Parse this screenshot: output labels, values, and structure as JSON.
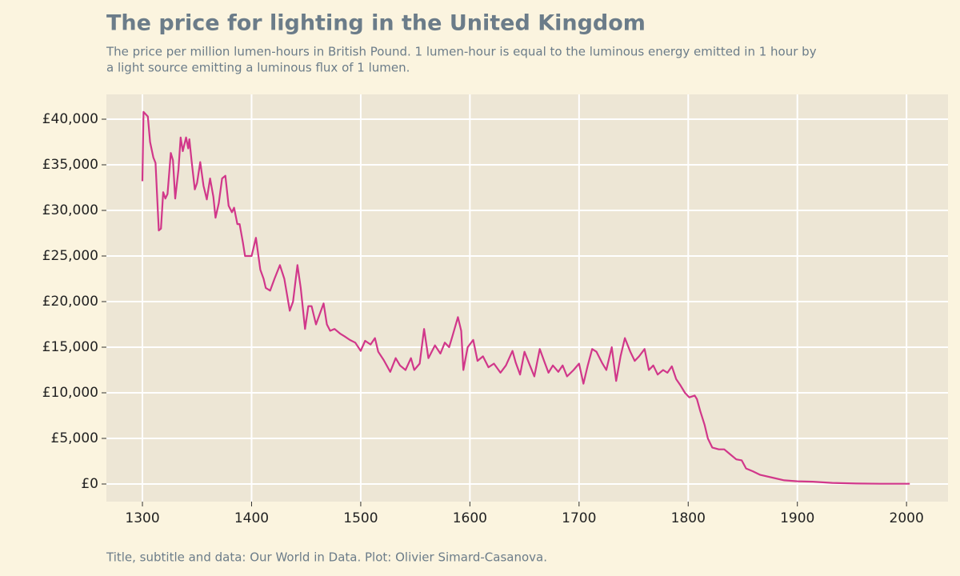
{
  "chart_data": {
    "type": "line",
    "title": "The price for lighting in the United Kingdom",
    "subtitle": [
      "The price per million lumen-hours in British Pound. 1 lumen-hour is equal to the luminous energy emitted in 1 hour by",
      "a light source emitting a luminous flux of 1 lumen."
    ],
    "caption": "Title, subtitle and data: Our World in Data. Plot: Olivier Simard-Casanova.",
    "series": [
      {
        "name": "United Kingdom",
        "color": "#d1378a",
        "x": [
          1300,
          1301,
          1305,
          1307,
          1310,
          1312,
          1315,
          1317,
          1319,
          1321,
          1323,
          1326,
          1328,
          1330,
          1333,
          1335,
          1337,
          1340,
          1342,
          1343,
          1345,
          1348,
          1350,
          1353,
          1356,
          1359,
          1362,
          1365,
          1367,
          1370,
          1373,
          1376,
          1379,
          1382,
          1384,
          1387,
          1389,
          1392,
          1394,
          1398,
          1400,
          1404,
          1408,
          1411,
          1413,
          1417,
          1421,
          1426,
          1430,
          1435,
          1438,
          1442,
          1445,
          1449,
          1452,
          1455,
          1459,
          1462,
          1466,
          1469,
          1472,
          1476,
          1481,
          1485,
          1490,
          1495,
          1500,
          1504,
          1509,
          1513,
          1516,
          1521,
          1527,
          1532,
          1536,
          1541,
          1546,
          1549,
          1554,
          1558,
          1562,
          1568,
          1573,
          1577,
          1581,
          1584,
          1589,
          1592,
          1594,
          1598,
          1603,
          1607,
          1612,
          1617,
          1622,
          1628,
          1633,
          1639,
          1642,
          1646,
          1650,
          1655,
          1659,
          1664,
          1668,
          1672,
          1676,
          1681,
          1685,
          1689,
          1695,
          1700,
          1704,
          1708,
          1712,
          1716,
          1721,
          1725,
          1730,
          1734,
          1738,
          1742,
          1747,
          1751,
          1755,
          1760,
          1764,
          1768,
          1772,
          1777,
          1781,
          1785,
          1789,
          1793,
          1797,
          1801,
          1806,
          1808,
          1811,
          1815,
          1818,
          1822,
          1828,
          1833,
          1838,
          1844,
          1849,
          1853,
          1859,
          1866,
          1877,
          1888,
          1900,
          1914,
          1932,
          1954,
          1976,
          2003
        ],
        "values": [
          33200,
          40800,
          40300,
          37500,
          35800,
          35200,
          27800,
          28000,
          32000,
          31300,
          31800,
          36300,
          35500,
          31300,
          34500,
          38000,
          36500,
          38000,
          36800,
          37800,
          35500,
          32300,
          33000,
          35300,
          32700,
          31200,
          33500,
          31500,
          29200,
          30800,
          33500,
          33800,
          30500,
          29800,
          30300,
          28500,
          28500,
          26500,
          25000,
          25000,
          25000,
          27000,
          23500,
          22500,
          21500,
          21200,
          22500,
          24000,
          22500,
          19000,
          20000,
          24000,
          21500,
          17000,
          19500,
          19500,
          17500,
          18500,
          19800,
          17500,
          16800,
          17000,
          16500,
          16200,
          15800,
          15500,
          14600,
          15700,
          15300,
          16000,
          14500,
          13600,
          12300,
          13800,
          13000,
          12500,
          13800,
          12500,
          13200,
          17000,
          13800,
          15200,
          14300,
          15500,
          15000,
          16200,
          18300,
          16800,
          12500,
          15000,
          15800,
          13500,
          14000,
          12800,
          13200,
          12200,
          13000,
          14600,
          13300,
          12000,
          14500,
          13000,
          11800,
          14800,
          13500,
          12200,
          13000,
          12300,
          13000,
          11800,
          12500,
          13200,
          11000,
          13000,
          14800,
          14500,
          13300,
          12500,
          15000,
          11300,
          14000,
          16000,
          14500,
          13500,
          14000,
          14800,
          12500,
          13000,
          12000,
          12500,
          12200,
          12900,
          11500,
          10800,
          10000,
          9500,
          9700,
          9300,
          8000,
          6500,
          5000,
          4000,
          3800,
          3800,
          3300,
          2700,
          2600,
          1700,
          1400,
          1000,
          700,
          400,
          300,
          250,
          120,
          50,
          30,
          30
        ]
      }
    ],
    "xlim": [
      1267,
      2038
    ],
    "xticks": [
      1300,
      1400,
      1500,
      1600,
      1700,
      1800,
      1900,
      2000
    ],
    "ylim": [
      -1930,
      42720
    ],
    "yticks": [
      {
        "value": 0,
        "label": "£0"
      },
      {
        "value": 5000,
        "label": "£5,000"
      },
      {
        "value": 10000,
        "label": "£10,000"
      },
      {
        "value": 15000,
        "label": "£15,000"
      },
      {
        "value": 20000,
        "label": "£20,000"
      },
      {
        "value": 25000,
        "label": "£25,000"
      },
      {
        "value": 30000,
        "label": "£30,000"
      },
      {
        "value": 35000,
        "label": "£35,000"
      },
      {
        "value": 40000,
        "label": "£40,000"
      }
    ],
    "grid": true
  }
}
